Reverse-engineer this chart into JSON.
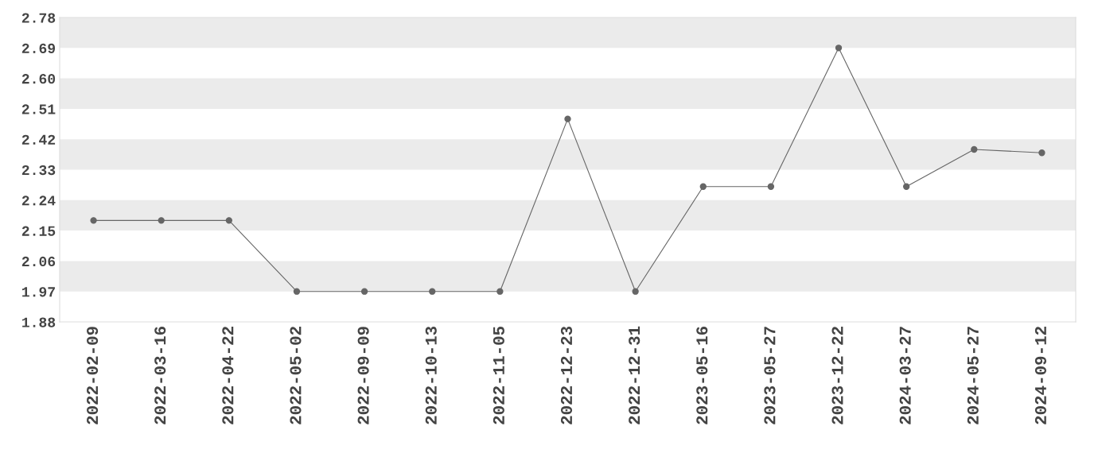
{
  "chart_data": {
    "type": "line",
    "categories": [
      "2022-02-09",
      "2022-03-16",
      "2022-04-22",
      "2022-05-02",
      "2022-09-09",
      "2022-10-13",
      "2022-11-05",
      "2022-12-23",
      "2022-12-31",
      "2023-05-16",
      "2023-05-27",
      "2023-12-22",
      "2024-03-27",
      "2024-05-27",
      "2024-09-12"
    ],
    "series": [
      {
        "color": "#666666",
        "values": [
          2.18,
          2.18,
          2.18,
          1.97,
          1.97,
          1.97,
          1.97,
          2.48,
          1.97,
          2.28,
          2.28,
          2.69,
          2.28,
          2.39,
          2.38
        ]
      }
    ],
    "ylim": [
      1.88,
      2.78
    ],
    "yticks": [
      {
        "value": 1.88,
        "label": "1.88"
      },
      {
        "value": 1.97,
        "label": "1.97"
      },
      {
        "value": 2.06,
        "label": "2.06"
      },
      {
        "value": 2.15,
        "label": "2.15"
      },
      {
        "value": 2.24,
        "label": "2.24"
      },
      {
        "value": 2.33,
        "label": "2.33"
      },
      {
        "value": 2.42,
        "label": "2.42"
      },
      {
        "value": 2.51,
        "label": "2.51"
      },
      {
        "value": 2.6,
        "label": "2.60"
      },
      {
        "value": 2.69,
        "label": "2.69"
      },
      {
        "value": 2.78,
        "label": "2.78"
      }
    ],
    "bands": [
      {
        "axis": "y",
        "from": 1.97,
        "to": 2.06,
        "color": "#ebebeb"
      },
      {
        "axis": "y",
        "from": 2.15,
        "to": 2.24,
        "color": "#ebebeb"
      },
      {
        "axis": "y",
        "from": 2.33,
        "to": 2.42,
        "color": "#ebebeb"
      },
      {
        "axis": "y",
        "from": 2.51,
        "to": 2.6,
        "color": "#ebebeb"
      },
      {
        "axis": "y",
        "from": 2.69,
        "to": 2.78,
        "color": "#ebebeb"
      }
    ],
    "marker": "circle",
    "line_style": "solid",
    "grid": false,
    "legend": false
  }
}
